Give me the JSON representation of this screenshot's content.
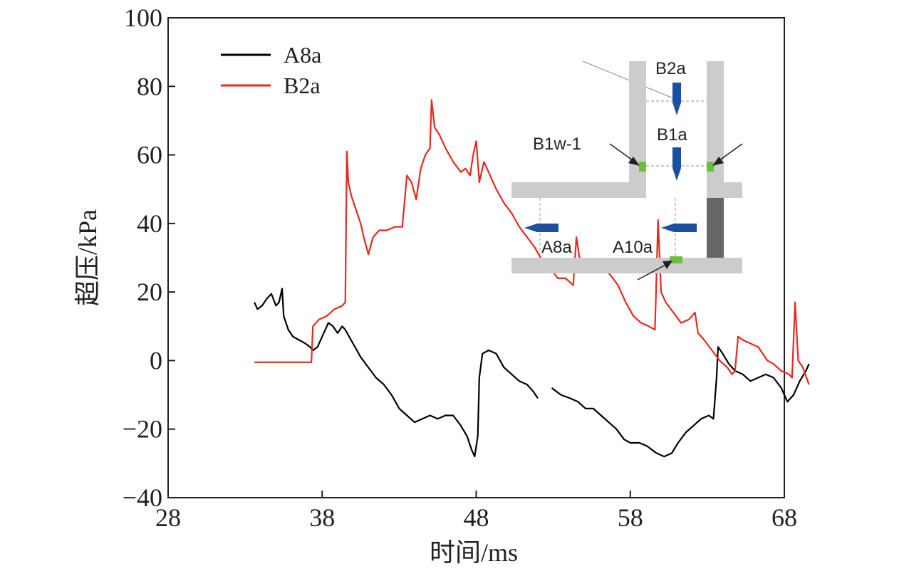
{
  "chart_data": {
    "type": "line",
    "title": "",
    "xlabel": "时间/ms",
    "ylabel": "超压/kPa",
    "xlim": [
      28,
      68
    ],
    "ylim": [
      -40,
      100
    ],
    "x_ticks": [
      28,
      38,
      48,
      58,
      68
    ],
    "y_ticks": [
      -40,
      -20,
      0,
      20,
      40,
      60,
      80,
      100
    ],
    "y_tick_labels": [
      "−40",
      "−20",
      "0",
      "20",
      "40",
      "60",
      "80",
      "100"
    ],
    "grid": false,
    "legend_position": "top-left",
    "series": [
      {
        "name": "A8a",
        "color": "#000000",
        "segments": [
          [
            [
              33.6,
              17
            ],
            [
              33.8,
              15
            ],
            [
              34.1,
              16
            ],
            [
              34.4,
              18
            ],
            [
              34.7,
              19.5
            ],
            [
              35.0,
              16
            ],
            [
              35.2,
              17
            ],
            [
              35.4,
              21
            ],
            [
              35.5,
              13
            ],
            [
              35.8,
              9
            ],
            [
              36.1,
              7
            ],
            [
              36.5,
              6
            ],
            [
              36.9,
              5
            ],
            [
              37.2,
              4
            ],
            [
              37.4,
              3
            ],
            [
              37.7,
              4
            ],
            [
              38.0,
              7
            ],
            [
              38.4,
              11
            ],
            [
              38.7,
              10
            ],
            [
              39.0,
              8
            ],
            [
              39.3,
              10
            ],
            [
              39.5,
              9
            ],
            [
              40.0,
              5
            ],
            [
              40.5,
              1
            ],
            [
              41.0,
              -2
            ],
            [
              41.5,
              -5
            ],
            [
              42.0,
              -7
            ],
            [
              42.5,
              -10
            ],
            [
              43.0,
              -14
            ],
            [
              43.5,
              -16
            ],
            [
              44.0,
              -18
            ],
            [
              44.5,
              -17
            ],
            [
              45.0,
              -16
            ],
            [
              45.5,
              -17
            ],
            [
              46.0,
              -16
            ],
            [
              46.5,
              -16
            ],
            [
              47.0,
              -19
            ],
            [
              47.4,
              -22
            ],
            [
              47.7,
              -26
            ],
            [
              47.9,
              -28
            ],
            [
              48.1,
              -22
            ],
            [
              48.2,
              -5
            ],
            [
              48.4,
              2
            ],
            [
              48.8,
              3
            ],
            [
              49.3,
              2
            ],
            [
              49.8,
              -2
            ],
            [
              50.3,
              -4
            ],
            [
              50.8,
              -6
            ],
            [
              51.3,
              -7
            ],
            [
              51.7,
              -9
            ],
            [
              52.0,
              -11
            ]
          ],
          [
            [
              52.9,
              -8
            ],
            [
              53.5,
              -10
            ],
            [
              54.1,
              -11
            ],
            [
              54.6,
              -12
            ],
            [
              55.1,
              -14
            ],
            [
              55.6,
              -14
            ],
            [
              56.1,
              -16
            ],
            [
              56.6,
              -18
            ],
            [
              57.1,
              -20
            ],
            [
              57.6,
              -23
            ],
            [
              58.0,
              -24
            ],
            [
              58.6,
              -24
            ],
            [
              59.1,
              -25
            ],
            [
              59.7,
              -27
            ],
            [
              60.2,
              -28
            ],
            [
              60.7,
              -27
            ],
            [
              61.1,
              -24
            ],
            [
              61.6,
              -21
            ],
            [
              62.1,
              -19
            ],
            [
              62.6,
              -17
            ],
            [
              63.1,
              -16
            ],
            [
              63.4,
              -17
            ],
            [
              63.6,
              -5
            ],
            [
              63.7,
              4
            ],
            [
              64.0,
              2
            ],
            [
              64.4,
              -1
            ],
            [
              64.8,
              -3
            ],
            [
              65.3,
              -4
            ],
            [
              65.8,
              -6
            ],
            [
              66.3,
              -5
            ],
            [
              66.8,
              -4
            ],
            [
              67.3,
              -5
            ],
            [
              67.8,
              -8
            ],
            [
              68.2,
              -12
            ],
            [
              68.6,
              -10
            ],
            [
              69.0,
              -6
            ],
            [
              69.4,
              -3
            ],
            [
              69.6,
              -1
            ]
          ]
        ]
      },
      {
        "name": "B2a",
        "color": "#e8281f",
        "segments": [
          [
            [
              33.6,
              -0.5
            ],
            [
              34.5,
              -0.5
            ],
            [
              35.5,
              -0.5
            ],
            [
              36.5,
              -0.5
            ],
            [
              37.3,
              -0.5
            ],
            [
              37.4,
              10
            ],
            [
              37.8,
              12
            ],
            [
              38.3,
              13
            ],
            [
              38.8,
              15
            ],
            [
              39.3,
              16
            ],
            [
              39.5,
              17
            ],
            [
              39.6,
              61
            ],
            [
              39.7,
              52
            ],
            [
              39.9,
              48
            ],
            [
              40.2,
              44
            ],
            [
              40.5,
              40
            ],
            [
              40.7,
              36
            ],
            [
              41.0,
              31
            ],
            [
              41.3,
              36
            ],
            [
              41.7,
              38
            ],
            [
              42.2,
              38
            ],
            [
              42.7,
              39
            ],
            [
              43.2,
              39
            ],
            [
              43.5,
              54
            ],
            [
              43.8,
              52
            ],
            [
              44.1,
              47
            ],
            [
              44.4,
              56
            ],
            [
              44.7,
              60
            ],
            [
              45.0,
              62
            ],
            [
              45.1,
              76
            ],
            [
              45.3,
              68
            ],
            [
              45.6,
              66
            ],
            [
              46.0,
              62
            ],
            [
              46.5,
              58
            ],
            [
              47.0,
              55
            ],
            [
              47.3,
              56
            ],
            [
              47.6,
              54
            ],
            [
              47.8,
              60
            ],
            [
              48.0,
              64
            ],
            [
              48.2,
              52
            ],
            [
              48.5,
              58
            ],
            [
              48.8,
              55
            ],
            [
              49.3,
              50
            ],
            [
              49.8,
              46
            ],
            [
              50.3,
              43
            ],
            [
              50.8,
              39
            ],
            [
              51.3,
              36
            ],
            [
              51.8,
              33
            ],
            [
              52.3,
              29
            ],
            [
              52.8,
              27
            ],
            [
              53.3,
              24
            ],
            [
              53.8,
              24
            ],
            [
              54.3,
              22
            ],
            [
              54.5,
              36
            ],
            [
              54.7,
              30
            ],
            [
              55.2,
              29
            ],
            [
              55.7,
              27
            ],
            [
              56.2,
              28
            ],
            [
              56.7,
              25
            ],
            [
              57.2,
              22
            ],
            [
              57.7,
              17
            ],
            [
              58.2,
              13
            ],
            [
              58.7,
              11
            ],
            [
              59.2,
              10
            ],
            [
              59.6,
              9
            ],
            [
              59.8,
              41
            ],
            [
              60.0,
              20
            ],
            [
              60.3,
              17
            ],
            [
              60.8,
              14
            ],
            [
              61.3,
              11
            ],
            [
              61.8,
              12
            ],
            [
              62.2,
              14
            ],
            [
              62.4,
              8
            ],
            [
              62.8,
              6
            ],
            [
              63.3,
              3
            ],
            [
              63.8,
              0
            ],
            [
              64.3,
              -2
            ],
            [
              64.6,
              -4
            ],
            [
              64.8,
              -3
            ],
            [
              65.0,
              7
            ],
            [
              65.3,
              6
            ],
            [
              65.8,
              5
            ],
            [
              66.3,
              4
            ],
            [
              66.6,
              2
            ],
            [
              66.9,
              0
            ],
            [
              67.3,
              -1
            ],
            [
              67.8,
              -3
            ],
            [
              68.3,
              -4
            ],
            [
              68.5,
              -5
            ],
            [
              68.7,
              17
            ],
            [
              68.9,
              0
            ],
            [
              69.2,
              -2
            ],
            [
              69.6,
              -7
            ]
          ]
        ]
      }
    ],
    "inset": {
      "labels": [
        "B2a",
        "B1a",
        "B1w-1",
        "A8a",
        "A10a"
      ],
      "wall_color": "#cccccc",
      "sensor_color": "#1d4fa0",
      "mark_color": "#6cbf3c",
      "dark_block_color": "#666666"
    }
  }
}
